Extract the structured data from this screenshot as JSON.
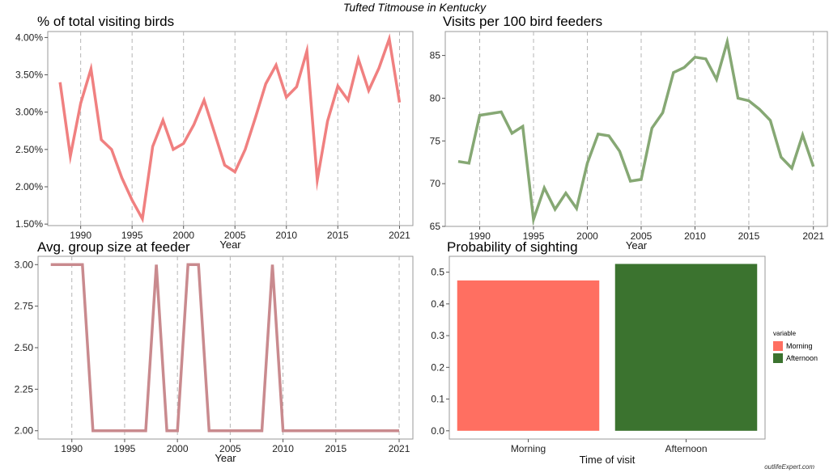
{
  "title": "Tufted Titmouse in Kentucky",
  "watermark": "outlifeExpert.com",
  "chart_data": [
    {
      "type": "line",
      "title": "% of total visiting birds",
      "xlabel": "Year",
      "ylabel": "",
      "x": [
        1988,
        1989,
        1990,
        1991,
        1992,
        1993,
        1994,
        1995,
        1996,
        1997,
        1998,
        1999,
        2000,
        2001,
        2002,
        2003,
        2004,
        2005,
        2006,
        2007,
        2008,
        2009,
        2010,
        2011,
        2012,
        2013,
        2014,
        2015,
        2016,
        2017,
        2018,
        2019,
        2020,
        2021
      ],
      "series": [
        {
          "name": "",
          "values": [
            3.4,
            2.41,
            3.12,
            3.58,
            2.63,
            2.5,
            2.12,
            1.82,
            1.57,
            2.54,
            2.89,
            2.5,
            2.58,
            2.83,
            3.16,
            2.73,
            2.29,
            2.2,
            2.5,
            2.93,
            3.38,
            3.63,
            3.2,
            3.34,
            3.82,
            2.09,
            2.88,
            3.35,
            3.16,
            3.71,
            3.29,
            3.59,
            3.98,
            3.13
          ]
        }
      ],
      "color": "#f08080",
      "xticks": [
        "1990",
        "1995",
        "2000",
        "2005",
        "2010",
        "2015",
        "2021"
      ],
      "yticks": [
        "1.50%",
        "2.00%",
        "2.50%",
        "3.00%",
        "3.50%",
        "4.00%"
      ],
      "ylim": [
        1.48,
        4.08
      ],
      "grid": "vertical dashed"
    },
    {
      "type": "line",
      "title": "Visits per 100 bird feeders",
      "xlabel": "Year",
      "ylabel": "",
      "x": [
        1988,
        1989,
        1990,
        1991,
        1992,
        1993,
        1994,
        1995,
        1996,
        1997,
        1998,
        1999,
        2000,
        2001,
        2002,
        2003,
        2004,
        2005,
        2006,
        2007,
        2008,
        2009,
        2010,
        2011,
        2012,
        2013,
        2014,
        2015,
        2016,
        2017,
        2018,
        2019,
        2020,
        2021
      ],
      "series": [
        {
          "name": "",
          "values": [
            72.6,
            72.4,
            78.0,
            78.2,
            78.4,
            75.9,
            76.7,
            65.8,
            69.5,
            67.0,
            68.9,
            67.1,
            72.4,
            75.8,
            75.6,
            73.8,
            70.3,
            70.5,
            76.5,
            78.3,
            83.0,
            83.6,
            84.8,
            84.6,
            82.2,
            86.6,
            80.0,
            79.7,
            78.7,
            77.4,
            73.1,
            71.8,
            75.7,
            72.0
          ]
        }
      ],
      "color": "#86a874",
      "xticks": [
        "1990",
        "1995",
        "2000",
        "2005",
        "2010",
        "2015",
        "2021"
      ],
      "yticks": [
        "65",
        "70",
        "75",
        "80",
        "85"
      ],
      "ylim": [
        65,
        87.8
      ],
      "grid": "vertical dashed"
    },
    {
      "type": "line",
      "title": "Avg. group size at feeder",
      "xlabel": "Year",
      "ylabel": "",
      "x": [
        1988,
        1989,
        1990,
        1991,
        1992,
        1993,
        1994,
        1995,
        1996,
        1997,
        1998,
        1999,
        2000,
        2001,
        2002,
        2003,
        2004,
        2005,
        2006,
        2007,
        2008,
        2009,
        2010,
        2011,
        2012,
        2013,
        2014,
        2015,
        2016,
        2017,
        2018,
        2019,
        2020,
        2021
      ],
      "series": [
        {
          "name": "",
          "values": [
            3,
            3,
            3,
            3,
            2,
            2,
            2,
            2,
            2,
            2,
            3,
            2,
            2,
            3,
            3,
            2,
            2,
            2,
            2,
            2,
            2,
            3,
            2,
            2,
            2,
            2,
            2,
            2,
            2,
            2,
            2,
            2,
            2,
            2
          ]
        }
      ],
      "color": "#c98a8e",
      "xticks": [
        "1990",
        "1995",
        "2000",
        "2005",
        "2010",
        "2015",
        "2021"
      ],
      "yticks": [
        "2.00",
        "2.25",
        "2.50",
        "2.75",
        "3.00"
      ],
      "ylim": [
        1.95,
        3.05
      ],
      "grid": "vertical dashed"
    },
    {
      "type": "bar",
      "title": "Probability of sighting",
      "xlabel": "Time of visit",
      "ylabel": "",
      "categories": [
        "Morning",
        "Afternoon"
      ],
      "values": [
        0.474,
        0.526
      ],
      "colors": [
        "#ff6f61",
        "#3b732f"
      ],
      "yticks": [
        "0.0",
        "0.1",
        "0.2",
        "0.3",
        "0.4",
        "0.5"
      ],
      "ylim": [
        -0.026,
        0.55
      ],
      "legend": {
        "title": "variable",
        "items": [
          "Morning",
          "Afternoon"
        ],
        "position": "right"
      }
    }
  ]
}
